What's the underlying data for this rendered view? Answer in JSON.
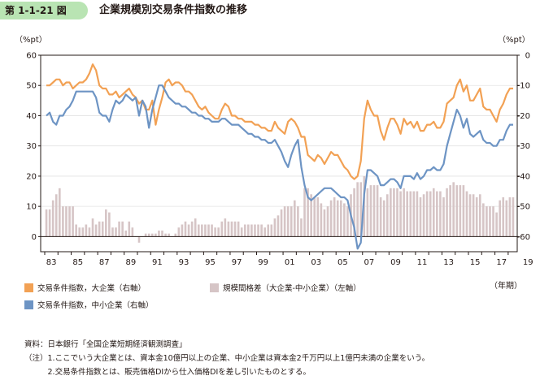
{
  "header": {
    "figure_number": "第 1-1-21 図",
    "title": "企業規模別交易条件指数の推移"
  },
  "chart_data": {
    "type": "bar+line",
    "title": "企業規模別交易条件指数の推移",
    "left_axis": {
      "unit": "（%pt）",
      "min": -5,
      "max": 60,
      "ticks": [
        0,
        10,
        20,
        30,
        40,
        50,
        60
      ]
    },
    "right_axis": {
      "unit": "（%pt）",
      "min": -65,
      "max": 0,
      "ticks": [
        0,
        -10,
        -20,
        -30,
        -40,
        -50,
        -60
      ]
    },
    "x_axis": {
      "label": "（年期）",
      "start_year": 1983,
      "quarters_per_year": 4,
      "tick_labels": [
        "83",
        "85",
        "87",
        "89",
        "91",
        "93",
        "95",
        "97",
        "99",
        "01",
        "03",
        "05",
        "07",
        "09",
        "11",
        "13",
        "15",
        "17",
        "19"
      ]
    },
    "legend": [
      {
        "key": "large",
        "label": "交易条件指数，大企業（右軸）",
        "color": "#f2a154"
      },
      {
        "key": "gap",
        "label": "規模間格差（大企業-中小企業）（左軸）",
        "color": "#d6c5c6"
      },
      {
        "key": "small",
        "label": "交易条件指数，中小企業（右軸）",
        "color": "#6d94c4"
      }
    ],
    "series": [
      {
        "name": "交易条件指数，大企業（右軸）",
        "axis": "right",
        "start": "1983Q1",
        "values": [
          -10,
          -10,
          -9,
          -8,
          -8,
          -10,
          -9,
          -9,
          -11,
          -10,
          -9,
          -9,
          -8,
          -6,
          -3,
          -5,
          -10,
          -11,
          -11,
          -13,
          -13,
          -12,
          -14,
          -13,
          -12,
          -11,
          -13,
          -14,
          -16,
          -15,
          -18,
          -18,
          -15,
          -23,
          -18,
          -14,
          -9,
          -8,
          -10,
          -9,
          -9,
          -10,
          -12,
          -12,
          -13,
          -15,
          -17,
          -18,
          -17,
          -19,
          -20,
          -21,
          -21,
          -18,
          -16,
          -17,
          -20,
          -20,
          -21,
          -21,
          -22,
          -22,
          -22,
          -23,
          -23,
          -24,
          -24,
          -25,
          -25,
          -22,
          -24,
          -25,
          -26,
          -22,
          -21,
          -22,
          -24,
          -27,
          -27,
          -33,
          -34,
          -35,
          -33,
          -34,
          -36,
          -34,
          -32,
          -33,
          -33,
          -35,
          -37,
          -38,
          -40,
          -41,
          -40,
          -35,
          -21,
          -15,
          -18,
          -20,
          -20,
          -25,
          -28,
          -24,
          -21,
          -21,
          -23,
          -26,
          -21,
          -23,
          -22,
          -24,
          -22,
          -25,
          -25,
          -23,
          -23,
          -22,
          -24,
          -24,
          -22,
          -16,
          -15,
          -14,
          -10,
          -8,
          -12,
          -10,
          -15,
          -15,
          -13,
          -11,
          -17,
          -18,
          -18,
          -20,
          -22,
          -18,
          -16,
          -13,
          -11,
          -11
        ]
      },
      {
        "name": "交易条件指数，中小企業（右軸）",
        "axis": "right",
        "start": "1983Q1",
        "values": [
          -20,
          -19,
          -22,
          -23,
          -20,
          -20,
          -18,
          -17,
          -15,
          -12,
          -12,
          -12,
          -12,
          -12,
          -12,
          -14,
          -19,
          -20,
          -20,
          -22,
          -18,
          -15,
          -16,
          -15,
          -13,
          -14,
          -15,
          -14,
          -20,
          -15,
          -17,
          -24,
          -18,
          -14,
          -10,
          -10,
          -12,
          -14,
          -15,
          -16,
          -16,
          -17,
          -17,
          -18,
          -19,
          -19,
          -20,
          -20,
          -21,
          -21,
          -22,
          -22,
          -22,
          -21,
          -21,
          -22,
          -23,
          -23,
          -23,
          -24,
          -25,
          -26,
          -26,
          -27,
          -27,
          -28,
          -28,
          -29,
          -29,
          -28,
          -30,
          -32,
          -35,
          -37,
          -33,
          -30,
          -28,
          -37,
          -43,
          -47,
          -48,
          -47,
          -46,
          -45,
          -44,
          -44,
          -44,
          -45,
          -46,
          -47,
          -47,
          -48,
          -53,
          -57,
          -64,
          -62,
          -46,
          -38,
          -38,
          -39,
          -40,
          -43,
          -43,
          -42,
          -41,
          -41,
          -42,
          -44,
          -40,
          -40,
          -40,
          -41,
          -39,
          -41,
          -40,
          -38,
          -38,
          -37,
          -38,
          -38,
          -36,
          -30,
          -26,
          -22,
          -18,
          -20,
          -24,
          -21,
          -26,
          -27,
          -26,
          -25,
          -28,
          -29,
          -29,
          -30,
          -30,
          -28,
          -28,
          -25,
          -23,
          -23
        ]
      },
      {
        "name": "規模間格差（大企業-中小企業）（左軸）",
        "axis": "left",
        "start": "1983Q1",
        "values": [
          9,
          9,
          12,
          14,
          16,
          10,
          10,
          10,
          10,
          4,
          3,
          3,
          4,
          3,
          6,
          4,
          5,
          5,
          9,
          8,
          3,
          3,
          5,
          5,
          2,
          5,
          3,
          0,
          -2,
          0,
          1,
          1,
          1,
          1,
          2,
          2,
          1,
          1,
          0,
          1,
          3,
          4,
          5,
          4,
          5,
          6,
          4,
          4,
          4,
          4,
          4,
          3,
          3,
          5,
          6,
          5,
          5,
          5,
          5,
          3,
          4,
          4,
          4,
          4,
          4,
          4,
          3,
          4,
          4,
          6,
          7,
          9,
          10,
          10,
          10,
          12,
          10,
          6,
          16,
          16,
          14,
          13,
          13,
          11,
          9,
          10,
          12,
          13,
          12,
          12,
          11,
          10,
          14,
          16,
          18,
          18,
          20,
          16,
          17,
          17,
          17,
          13,
          12,
          14,
          16,
          16,
          16,
          15,
          16,
          15,
          15,
          15,
          15,
          13,
          14,
          15,
          15,
          16,
          15,
          15,
          13,
          16,
          17,
          18,
          17,
          17,
          17,
          15,
          14,
          14,
          13,
          14,
          11,
          10,
          10,
          10,
          8,
          12,
          13,
          12,
          13,
          13
        ]
      }
    ]
  },
  "notes": [
    "資料：日本銀行「全国企業短期経済観測調査」",
    "（注）1.ここでいう大企業とは、資本金10億円以上の企業、中小企業は資本金2千万円以上1億円未満の企業をいう。",
    "　　　2.交易条件指数とは、販売価格DIから仕入価格DIを差し引いたものとする。"
  ]
}
